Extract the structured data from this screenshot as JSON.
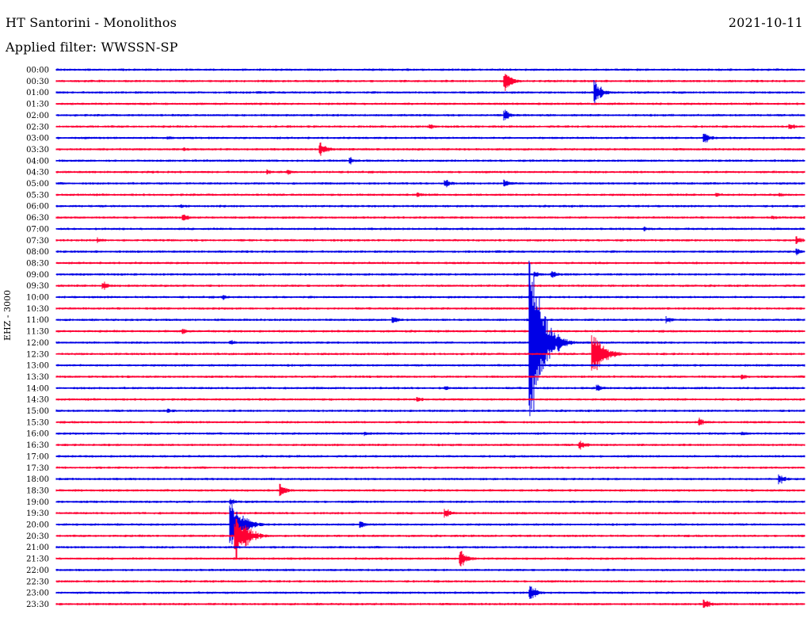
{
  "header": {
    "station": "HT Santorini - Monolithos",
    "date": "2021-10-11",
    "filter": "Applied filter: WWSSN-SP"
  },
  "axis": {
    "channel_label": "EHZ - 3000"
  },
  "chart_data": {
    "type": "seismogram",
    "title": "HT Santorini - Monolithos",
    "date": "2021-10-11",
    "filter": "WWSSN-SP",
    "ylabel": "EHZ - 3000",
    "colors": [
      "#0000e6",
      "#ff0033"
    ],
    "rows": [
      "00:00",
      "00:30",
      "01:00",
      "01:30",
      "02:00",
      "02:30",
      "03:00",
      "03:30",
      "04:00",
      "04:30",
      "05:00",
      "05:30",
      "06:00",
      "06:30",
      "07:00",
      "07:30",
      "08:00",
      "08:30",
      "09:00",
      "09:30",
      "10:00",
      "10:30",
      "11:00",
      "11:30",
      "12:00",
      "12:30",
      "13:00",
      "13:30",
      "14:00",
      "14:30",
      "15:00",
      "15:30",
      "16:00",
      "16:30",
      "17:00",
      "17:30",
      "18:00",
      "18:30",
      "19:00",
      "19:30",
      "20:00",
      "20:30",
      "21:00",
      "21:30",
      "22:00",
      "22:30",
      "23:00",
      "23:30"
    ],
    "events": [
      {
        "row": 1,
        "minute": 18.0,
        "amp": 16
      },
      {
        "row": 2,
        "minute": 21.6,
        "amp": 18
      },
      {
        "row": 4,
        "minute": 18.0,
        "amp": 8
      },
      {
        "row": 5,
        "minute": 15.0,
        "amp": 4
      },
      {
        "row": 5,
        "minute": 29.4,
        "amp": 6
      },
      {
        "row": 6,
        "minute": 4.5,
        "amp": 3
      },
      {
        "row": 6,
        "minute": 26.0,
        "amp": 8
      },
      {
        "row": 7,
        "minute": 5.1,
        "amp": 3
      },
      {
        "row": 7,
        "minute": 10.6,
        "amp": 10
      },
      {
        "row": 8,
        "minute": 11.8,
        "amp": 5
      },
      {
        "row": 9,
        "minute": 8.5,
        "amp": 4
      },
      {
        "row": 9,
        "minute": 9.3,
        "amp": 4
      },
      {
        "row": 10,
        "minute": 15.6,
        "amp": 7
      },
      {
        "row": 10,
        "minute": 18.0,
        "amp": 6
      },
      {
        "row": 11,
        "minute": 14.5,
        "amp": 4
      },
      {
        "row": 11,
        "minute": 26.5,
        "amp": 4
      },
      {
        "row": 11,
        "minute": 29.0,
        "amp": 4
      },
      {
        "row": 12,
        "minute": 5.0,
        "amp": 3
      },
      {
        "row": 13,
        "minute": 5.1,
        "amp": 6
      },
      {
        "row": 13,
        "minute": 28.7,
        "amp": 4
      },
      {
        "row": 14,
        "minute": 23.6,
        "amp": 4
      },
      {
        "row": 15,
        "minute": 1.7,
        "amp": 4
      },
      {
        "row": 15,
        "minute": 29.7,
        "amp": 6
      },
      {
        "row": 16,
        "minute": 29.7,
        "amp": 5
      },
      {
        "row": 18,
        "minute": 19.2,
        "amp": 5
      },
      {
        "row": 18,
        "minute": 19.9,
        "amp": 6
      },
      {
        "row": 19,
        "minute": 1.9,
        "amp": 7
      },
      {
        "row": 20,
        "minute": 6.7,
        "amp": 4
      },
      {
        "row": 22,
        "minute": 13.5,
        "amp": 6
      },
      {
        "row": 22,
        "minute": 24.5,
        "amp": 5
      },
      {
        "row": 23,
        "minute": 5.1,
        "amp": 5
      },
      {
        "row": 24,
        "minute": 7.0,
        "amp": 4
      },
      {
        "row": 24,
        "minute": 19.0,
        "amp": 150
      },
      {
        "row": 25,
        "minute": 21.5,
        "amp": 34
      },
      {
        "row": 27,
        "minute": 27.5,
        "amp": 5
      },
      {
        "row": 28,
        "minute": 15.6,
        "amp": 4
      },
      {
        "row": 28,
        "minute": 21.7,
        "amp": 5
      },
      {
        "row": 29,
        "minute": 14.5,
        "amp": 4
      },
      {
        "row": 30,
        "minute": 4.5,
        "amp": 4
      },
      {
        "row": 31,
        "minute": 25.8,
        "amp": 6
      },
      {
        "row": 32,
        "minute": 12.4,
        "amp": 4
      },
      {
        "row": 32,
        "minute": 27.5,
        "amp": 4
      },
      {
        "row": 33,
        "minute": 21.0,
        "amp": 8
      },
      {
        "row": 36,
        "minute": 29.0,
        "amp": 8
      },
      {
        "row": 37,
        "minute": 9.0,
        "amp": 10
      },
      {
        "row": 38,
        "minute": 7.0,
        "amp": 5
      },
      {
        "row": 39,
        "minute": 15.6,
        "amp": 8
      },
      {
        "row": 40,
        "minute": 12.2,
        "amp": 6
      },
      {
        "row": 40,
        "minute": 7.0,
        "amp": 40
      },
      {
        "row": 41,
        "minute": 7.2,
        "amp": 36
      },
      {
        "row": 43,
        "minute": 16.2,
        "amp": 15
      },
      {
        "row": 46,
        "minute": 19.0,
        "amp": 12
      },
      {
        "row": 47,
        "minute": 26.0,
        "amp": 8
      }
    ]
  }
}
